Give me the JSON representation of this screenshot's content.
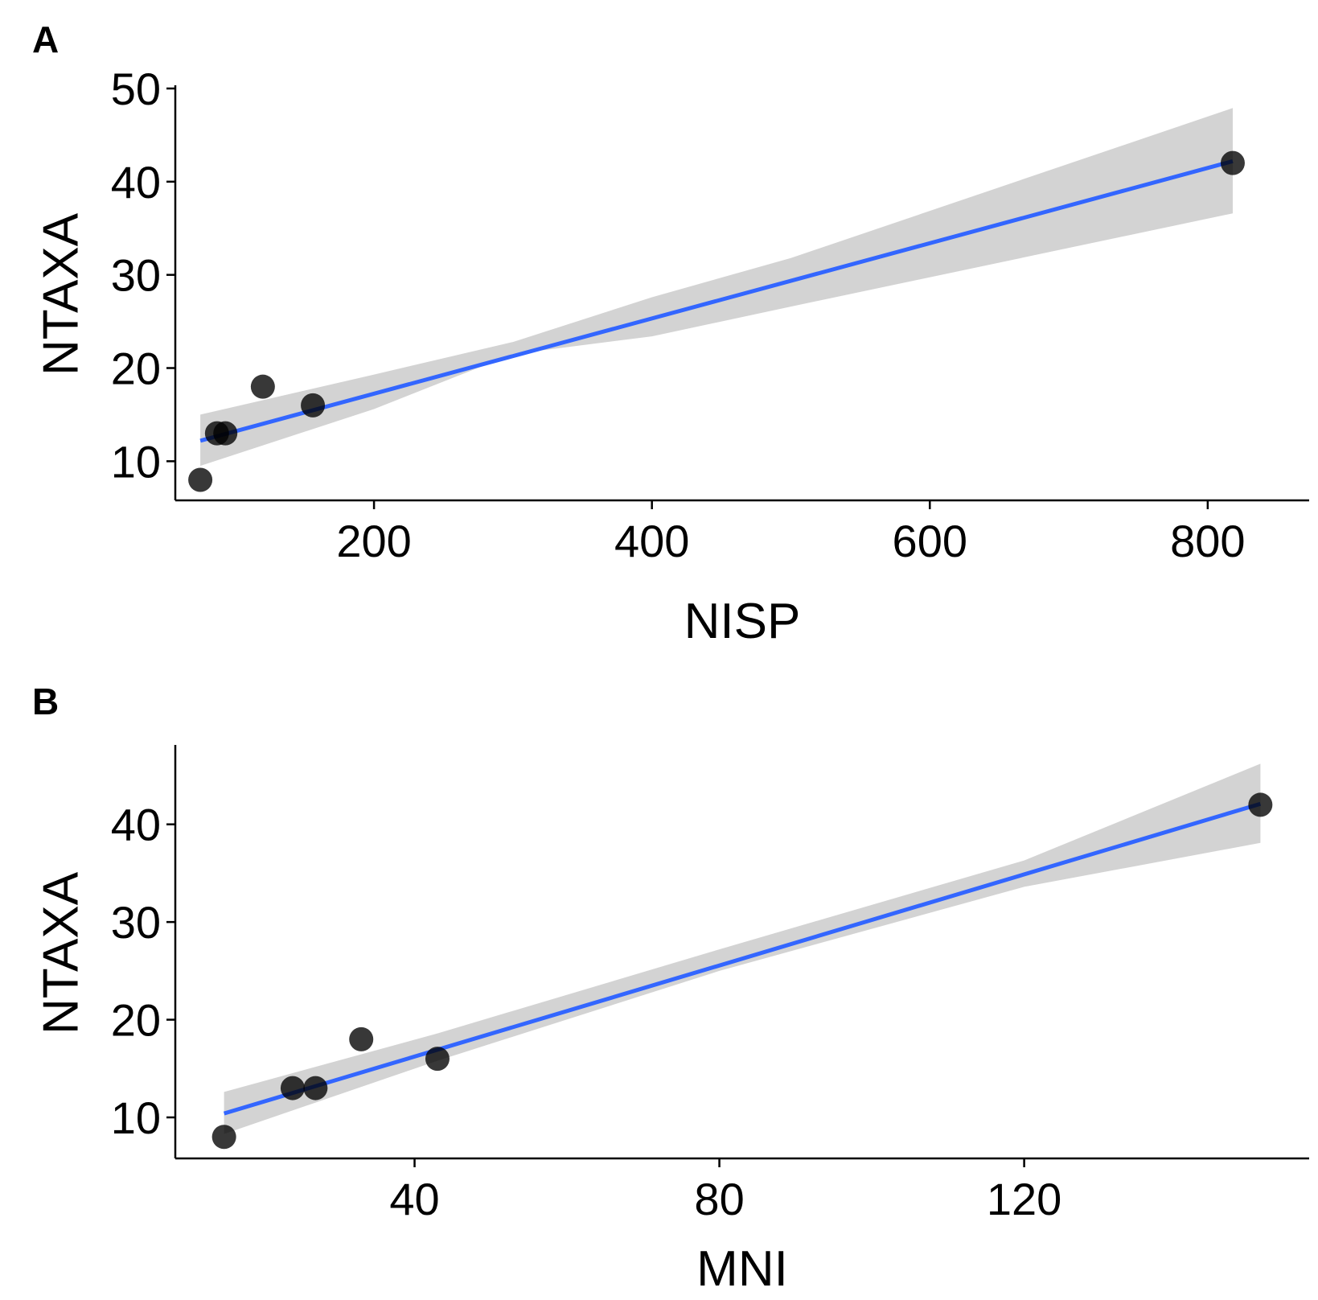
{
  "chart_data": [
    {
      "panel": "A",
      "type": "scatter",
      "title": "",
      "xlabel": "NISP",
      "ylabel": "NTAXA",
      "xlim": [
        57,
        873
      ],
      "ylim": [
        5.8,
        50
      ],
      "xticks": [
        200,
        400,
        600,
        800
      ],
      "yticks": [
        10,
        20,
        30,
        40,
        50
      ],
      "grid": false,
      "points": [
        {
          "x": 75,
          "y": 8
        },
        {
          "x": 87,
          "y": 13
        },
        {
          "x": 93,
          "y": 13
        },
        {
          "x": 120,
          "y": 18
        },
        {
          "x": 156,
          "y": 16
        },
        {
          "x": 818,
          "y": 42
        }
      ],
      "fit": {
        "method": "lm",
        "color": "#3366FF",
        "band_color": "#D3D3D3",
        "line": [
          [
            75,
            12.2
          ],
          [
            818,
            42.2
          ]
        ],
        "band_upper": [
          [
            75,
            15.0
          ],
          [
            200,
            19.3
          ],
          [
            300,
            22.8
          ],
          [
            400,
            27.6
          ],
          [
            500,
            31.8
          ],
          [
            818,
            47.9
          ]
        ],
        "band_lower": [
          [
            75,
            9.5
          ],
          [
            200,
            15.6
          ],
          [
            300,
            21.5
          ],
          [
            400,
            23.4
          ],
          [
            500,
            26.6
          ],
          [
            818,
            36.6
          ]
        ]
      }
    },
    {
      "panel": "B",
      "type": "scatter",
      "title": "",
      "xlabel": "MNI",
      "ylabel": "NTAXA",
      "xlim": [
        8.6,
        157.4
      ],
      "ylim": [
        5.8,
        47.8
      ],
      "xticks": [
        40,
        80,
        120
      ],
      "yticks": [
        10,
        20,
        30,
        40
      ],
      "grid": false,
      "points": [
        {
          "x": 15,
          "y": 8
        },
        {
          "x": 24,
          "y": 13
        },
        {
          "x": 27,
          "y": 13
        },
        {
          "x": 33,
          "y": 18
        },
        {
          "x": 43,
          "y": 16
        },
        {
          "x": 151,
          "y": 42
        }
      ],
      "fit": {
        "method": "lm",
        "color": "#3366FF",
        "band_color": "#D3D3D3",
        "line": [
          [
            15,
            10.4
          ],
          [
            151,
            42.1
          ]
        ],
        "band_upper": [
          [
            15,
            12.6
          ],
          [
            43,
            18.6
          ],
          [
            80,
            27.2
          ],
          [
            120,
            36.3
          ],
          [
            151,
            46.2
          ]
        ],
        "band_lower": [
          [
            15,
            8.3
          ],
          [
            43,
            15.8
          ],
          [
            80,
            25.0
          ],
          [
            120,
            33.6
          ],
          [
            151,
            38.1
          ]
        ]
      }
    }
  ]
}
